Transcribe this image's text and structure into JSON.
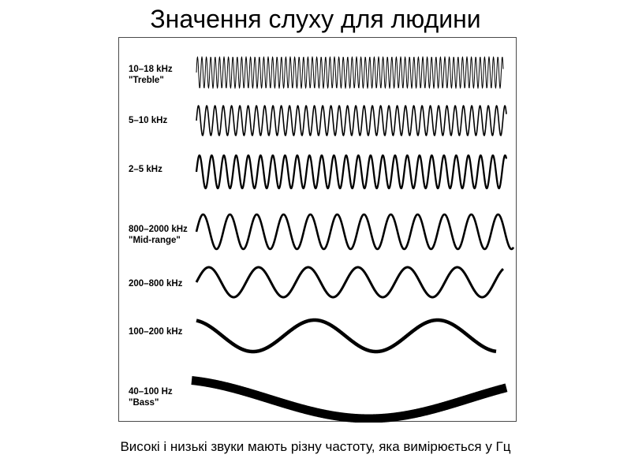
{
  "title": "Значення слуху для людини",
  "caption": "Високі і низькі звуки мають різну частоту, яка вимірюється у Гц",
  "bands": [
    {
      "range": "10–18 kHz",
      "name": "\"Treble\""
    },
    {
      "range": "5–10 kHz",
      "name": ""
    },
    {
      "range": "2–5 kHz",
      "name": ""
    },
    {
      "range": "800–2000 kHz",
      "name": "\"Mid-range\""
    },
    {
      "range": "200–800 kHz",
      "name": ""
    },
    {
      "range": "100–200 kHz",
      "name": ""
    },
    {
      "range": "40–100 Hz",
      "name": "\"Bass\""
    }
  ],
  "colors": {
    "wave": "#000000",
    "border": "#4a4a4a",
    "background": "#ffffff"
  }
}
